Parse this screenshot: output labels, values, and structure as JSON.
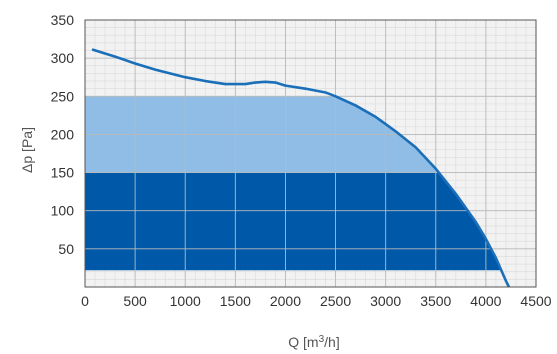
{
  "chart_data": {
    "type": "line",
    "title": "",
    "xlabel": "Q [m³/h]",
    "xlabel_base": "Q [m",
    "xlabel_sup": "3",
    "xlabel_tail": "/h]",
    "ylabel": "Δp [Pa]",
    "xlim": [
      0,
      4500
    ],
    "ylim": [
      0,
      350
    ],
    "xticks": [
      0,
      500,
      1000,
      1500,
      2000,
      2500,
      3000,
      3500,
      4000,
      4500
    ],
    "yticks": [
      50,
      100,
      150,
      200,
      250,
      300,
      350
    ],
    "grid": true,
    "curve": {
      "x": [
        80,
        300,
        500,
        700,
        1000,
        1200,
        1400,
        1600,
        1700,
        1800,
        1900,
        2000,
        2200,
        2400,
        2500,
        2700,
        2900,
        3100,
        3300,
        3500,
        3700,
        3900,
        4000,
        4100,
        4200,
        4230
      ],
      "y": [
        311,
        302,
        293,
        285,
        275,
        270,
        266,
        266,
        268,
        269,
        268,
        264,
        260,
        255,
        250,
        238,
        223,
        204,
        183,
        155,
        122,
        85,
        63,
        38,
        8,
        0
      ]
    },
    "regions": [
      {
        "ymin": 150,
        "ymax": 250,
        "color": "#8fbde6"
      },
      {
        "ymin": 22,
        "ymax": 150,
        "color": "#0059a8"
      }
    ],
    "colors": {
      "curve": "#1a6fb8",
      "plot_background": "#f2f2f2",
      "grid_minor": "#dddddd",
      "grid_major": "#b9b9b9",
      "frame": "#555555"
    }
  }
}
